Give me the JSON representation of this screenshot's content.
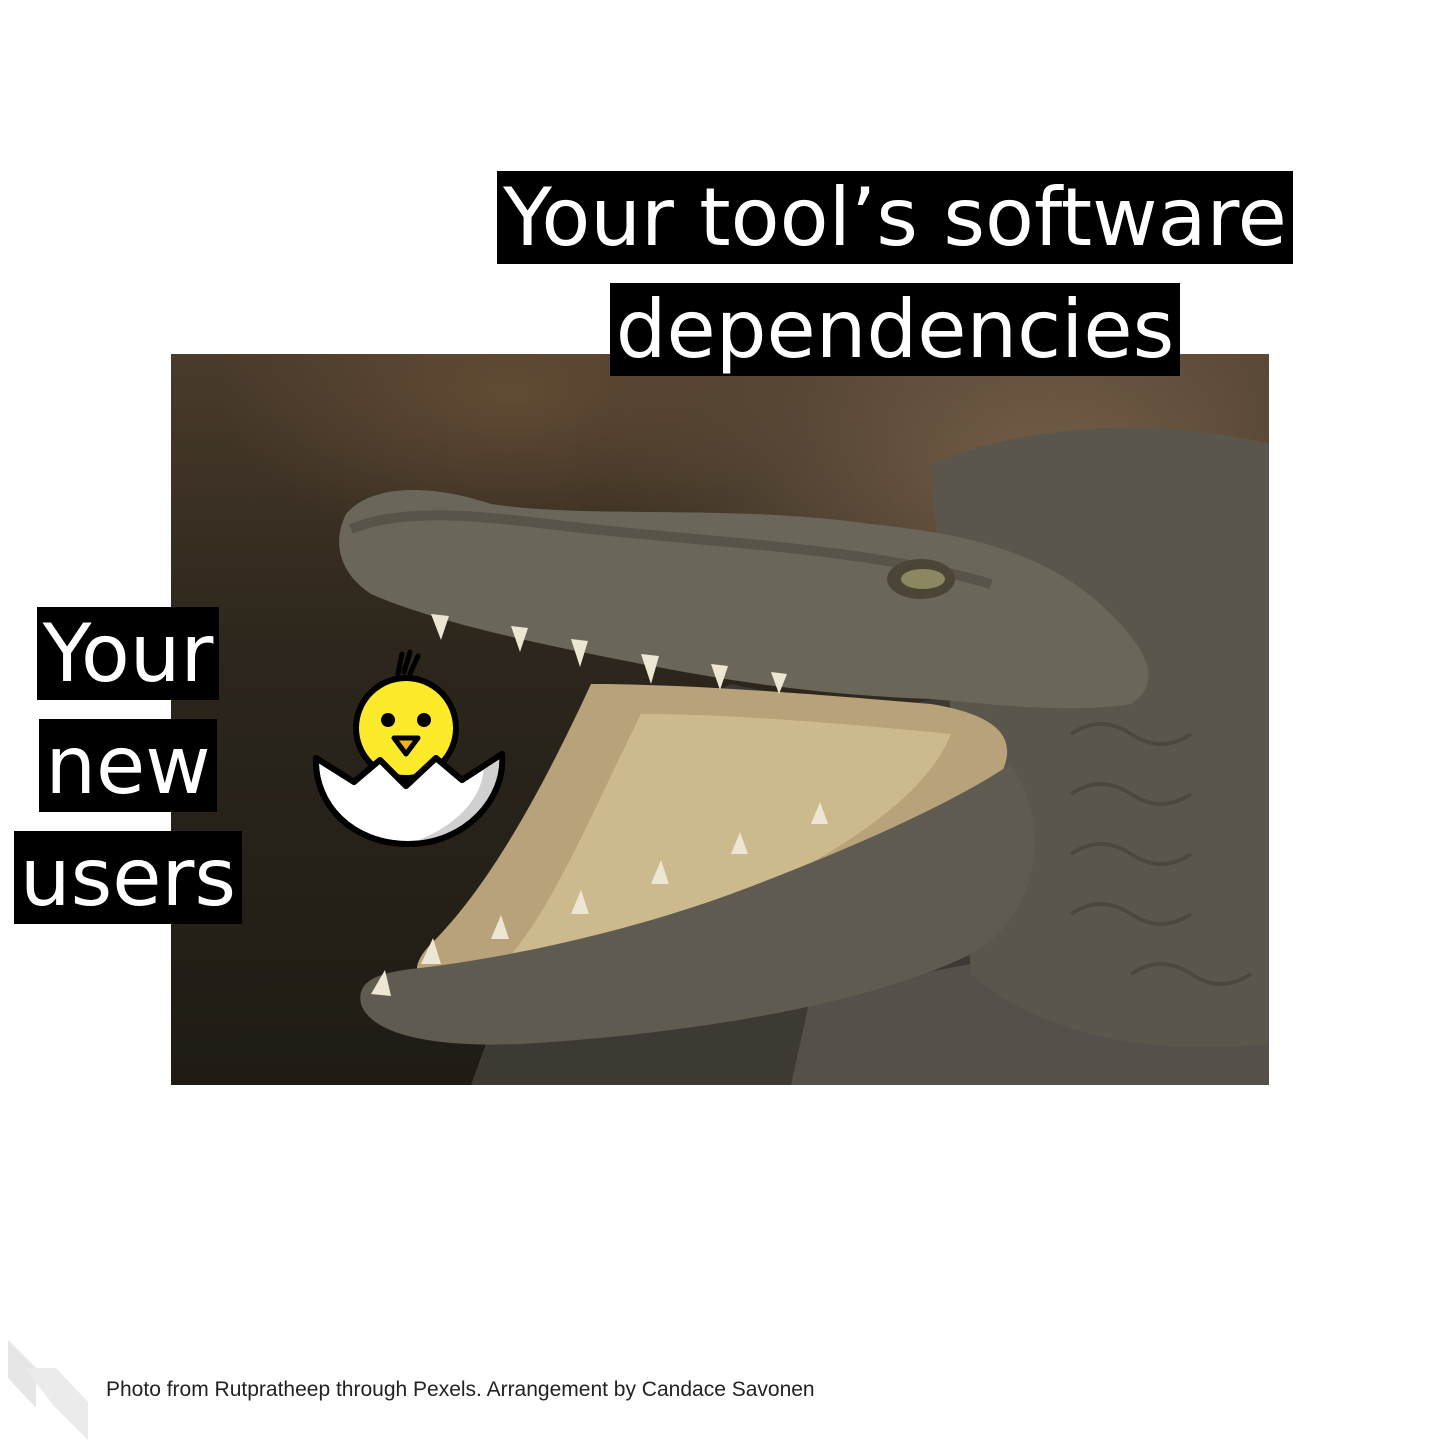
{
  "title": {
    "line1": "Your tool’s software",
    "line2": "dependencies"
  },
  "side_label": {
    "line1": "Your",
    "line2": "new",
    "line3": "users"
  },
  "caption": "Photo from Rutpratheep through Pexels. Arrangement by Candace Savonen",
  "images": {
    "photo": "crocodile-open-jaws-photo",
    "emoji": "hatching-chick-icon",
    "watermark": "slash-logo-icon"
  },
  "colors": {
    "caption_box": "#000000",
    "caption_text": "#ffffff",
    "chick_yellow": "#fcea2b",
    "eggshell": "#ffffff"
  }
}
